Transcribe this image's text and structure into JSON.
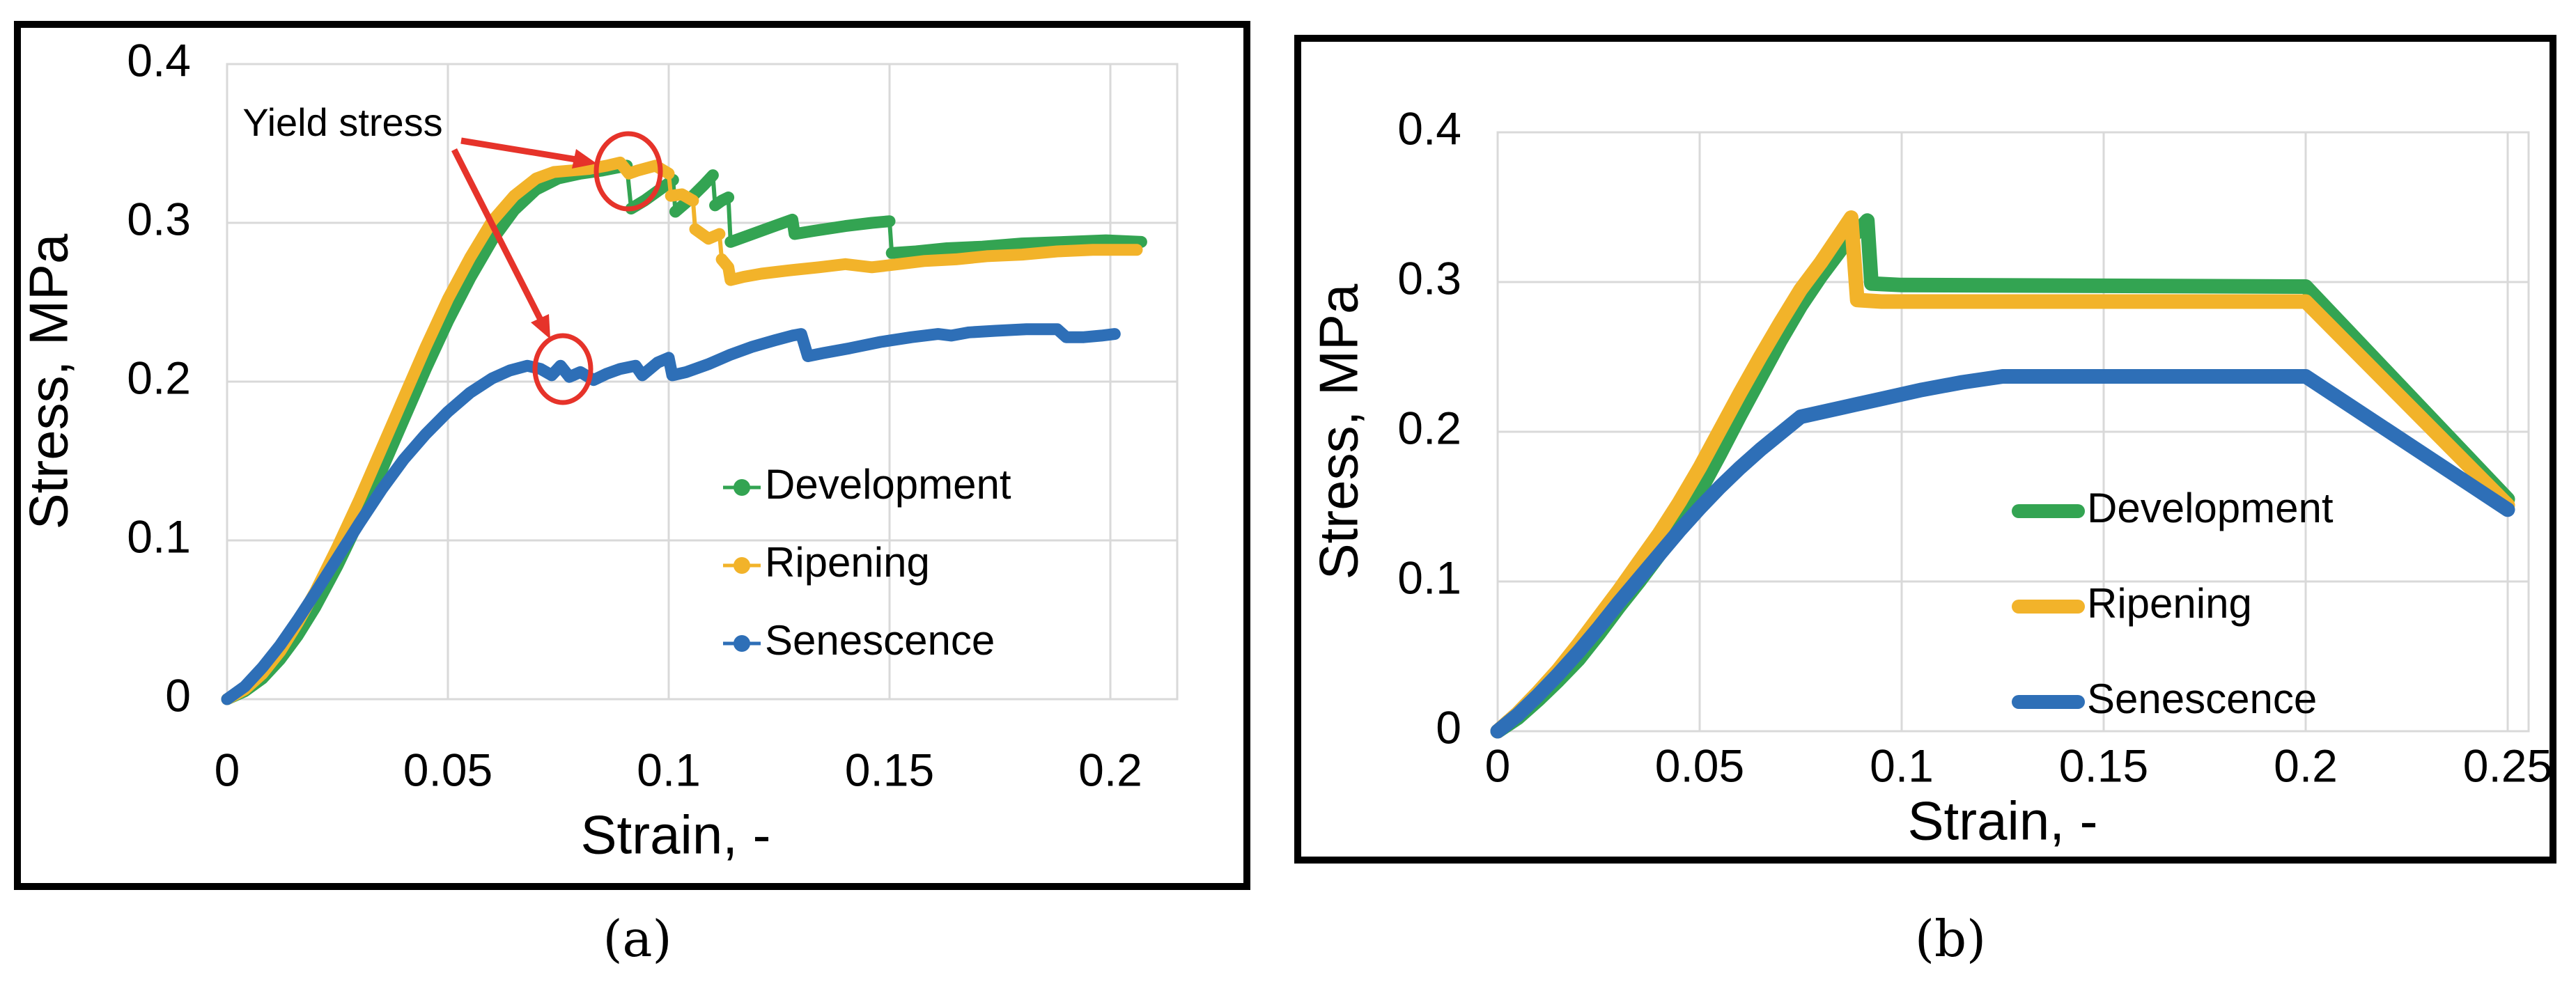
{
  "captions": {
    "a": "(a)",
    "b": "(b)"
  },
  "colors": {
    "development": "#33A452",
    "ripening": "#F2B32A",
    "senescence": "#2E6FB7",
    "annotation_red": "#E6332A",
    "grid": "#D9D9D9",
    "text": "#000000"
  },
  "chart_data": [
    {
      "id": "a",
      "type": "line",
      "caption": "(a)",
      "xlabel": "Strain, -",
      "ylabel": "Stress, MPa",
      "xlim": [
        0,
        0.215
      ],
      "ylim": [
        0,
        0.4
      ],
      "grid": true,
      "legend_position": "inside-lower-right",
      "x_ticks": [
        {
          "v": 0,
          "label": "0"
        },
        {
          "v": 0.05,
          "label": "0.05"
        },
        {
          "v": 0.1,
          "label": "0.1"
        },
        {
          "v": 0.15,
          "label": "0.15"
        },
        {
          "v": 0.2,
          "label": "0.2"
        }
      ],
      "y_ticks": [
        {
          "v": 0,
          "label": "0"
        },
        {
          "v": 0.1,
          "label": "0.1"
        },
        {
          "v": 0.2,
          "label": "0.2"
        },
        {
          "v": 0.3,
          "label": "0.3"
        },
        {
          "v": 0.4,
          "label": "0.4"
        }
      ],
      "annotation": {
        "text": "Yield stress",
        "targets": [
          {
            "label": "Development / Ripening yield",
            "strain": 0.089,
            "stress": 0.338
          },
          {
            "label": "Senescence yield",
            "strain": 0.0755,
            "stress": 0.21
          }
        ]
      },
      "series": [
        {
          "name": "Development",
          "color": "development",
          "style": "serrated",
          "points": [
            [
              0,
              0
            ],
            [
              0.004,
              0.005
            ],
            [
              0.008,
              0.013
            ],
            [
              0.012,
              0.025
            ],
            [
              0.016,
              0.04
            ],
            [
              0.02,
              0.058
            ],
            [
              0.025,
              0.084
            ],
            [
              0.03,
              0.113
            ],
            [
              0.035,
              0.144
            ],
            [
              0.04,
              0.176
            ],
            [
              0.045,
              0.208
            ],
            [
              0.05,
              0.238
            ],
            [
              0.055,
              0.265
            ],
            [
              0.06,
              0.289
            ],
            [
              0.065,
              0.308
            ],
            [
              0.07,
              0.321
            ],
            [
              0.075,
              0.328
            ],
            [
              0.08,
              0.331
            ],
            [
              0.085,
              0.333
            ],
            [
              0.0905,
              0.336
            ],
            [
              0.0915,
              0.309
            ],
            [
              0.0945,
              0.314
            ],
            [
              0.0985,
              0.322
            ],
            [
              0.101,
              0.327
            ],
            [
              0.1015,
              0.307
            ],
            [
              0.104,
              0.313
            ],
            [
              0.108,
              0.324
            ],
            [
              0.11,
              0.33
            ],
            [
              0.1105,
              0.311
            ],
            [
              0.112,
              0.314
            ],
            [
              0.1135,
              0.316
            ],
            [
              0.114,
              0.288
            ],
            [
              0.118,
              0.292
            ],
            [
              0.123,
              0.297
            ],
            [
              0.128,
              0.302
            ],
            [
              0.1285,
              0.293
            ],
            [
              0.133,
              0.295
            ],
            [
              0.14,
              0.298
            ],
            [
              0.146,
              0.3
            ],
            [
              0.15,
              0.301
            ],
            [
              0.1505,
              0.281
            ],
            [
              0.156,
              0.282
            ],
            [
              0.163,
              0.284
            ],
            [
              0.171,
              0.285
            ],
            [
              0.18,
              0.287
            ],
            [
              0.19,
              0.288
            ],
            [
              0.199,
              0.289
            ],
            [
              0.207,
              0.288
            ]
          ]
        },
        {
          "name": "Ripening",
          "color": "ripening",
          "style": "serrated",
          "points": [
            [
              0,
              0
            ],
            [
              0.004,
              0.006
            ],
            [
              0.008,
              0.016
            ],
            [
              0.012,
              0.03
            ],
            [
              0.016,
              0.048
            ],
            [
              0.02,
              0.068
            ],
            [
              0.025,
              0.096
            ],
            [
              0.03,
              0.126
            ],
            [
              0.035,
              0.158
            ],
            [
              0.04,
              0.19
            ],
            [
              0.045,
              0.222
            ],
            [
              0.05,
              0.252
            ],
            [
              0.055,
              0.278
            ],
            [
              0.06,
              0.301
            ],
            [
              0.065,
              0.317
            ],
            [
              0.07,
              0.328
            ],
            [
              0.074,
              0.332
            ],
            [
              0.078,
              0.333
            ],
            [
              0.082,
              0.334
            ],
            [
              0.086,
              0.336
            ],
            [
              0.089,
              0.338
            ],
            [
              0.091,
              0.331
            ],
            [
              0.093,
              0.333
            ],
            [
              0.097,
              0.336
            ],
            [
              0.1,
              0.331
            ],
            [
              0.1005,
              0.317
            ],
            [
              0.103,
              0.318
            ],
            [
              0.1055,
              0.314
            ],
            [
              0.106,
              0.296
            ],
            [
              0.109,
              0.29
            ],
            [
              0.1115,
              0.293
            ],
            [
              0.112,
              0.277
            ],
            [
              0.1135,
              0.272
            ],
            [
              0.114,
              0.264
            ],
            [
              0.117,
              0.266
            ],
            [
              0.121,
              0.268
            ],
            [
              0.127,
              0.27
            ],
            [
              0.134,
              0.272
            ],
            [
              0.14,
              0.274
            ],
            [
              0.146,
              0.272
            ],
            [
              0.152,
              0.274
            ],
            [
              0.158,
              0.276
            ],
            [
              0.165,
              0.277
            ],
            [
              0.172,
              0.279
            ],
            [
              0.18,
              0.28
            ],
            [
              0.188,
              0.282
            ],
            [
              0.196,
              0.283
            ],
            [
              0.206,
              0.283
            ]
          ]
        },
        {
          "name": "Senescence",
          "color": "senescence",
          "style": "serrated",
          "points": [
            [
              0,
              0
            ],
            [
              0.004,
              0.008
            ],
            [
              0.008,
              0.02
            ],
            [
              0.012,
              0.034
            ],
            [
              0.016,
              0.05
            ],
            [
              0.02,
              0.067
            ],
            [
              0.025,
              0.089
            ],
            [
              0.03,
              0.111
            ],
            [
              0.035,
              0.132
            ],
            [
              0.04,
              0.151
            ],
            [
              0.045,
              0.167
            ],
            [
              0.05,
              0.181
            ],
            [
              0.055,
              0.193
            ],
            [
              0.06,
              0.202
            ],
            [
              0.064,
              0.207
            ],
            [
              0.068,
              0.21
            ],
            [
              0.071,
              0.208
            ],
            [
              0.0735,
              0.204
            ],
            [
              0.0755,
              0.21
            ],
            [
              0.0775,
              0.203
            ],
            [
              0.08,
              0.206
            ],
            [
              0.083,
              0.201
            ],
            [
              0.086,
              0.205
            ],
            [
              0.089,
              0.208
            ],
            [
              0.0925,
              0.21
            ],
            [
              0.094,
              0.204
            ],
            [
              0.0975,
              0.212
            ],
            [
              0.1,
              0.215
            ],
            [
              0.1008,
              0.204
            ],
            [
              0.104,
              0.206
            ],
            [
              0.109,
              0.211
            ],
            [
              0.114,
              0.217
            ],
            [
              0.119,
              0.222
            ],
            [
              0.124,
              0.226
            ],
            [
              0.128,
              0.229
            ],
            [
              0.13,
              0.23
            ],
            [
              0.1315,
              0.216
            ],
            [
              0.135,
              0.218
            ],
            [
              0.141,
              0.221
            ],
            [
              0.148,
              0.225
            ],
            [
              0.155,
              0.228
            ],
            [
              0.161,
              0.23
            ],
            [
              0.164,
              0.229
            ],
            [
              0.168,
              0.231
            ],
            [
              0.174,
              0.232
            ],
            [
              0.181,
              0.233
            ],
            [
              0.188,
              0.233
            ],
            [
              0.19,
              0.228
            ],
            [
              0.194,
              0.228
            ],
            [
              0.198,
              0.229
            ],
            [
              0.201,
              0.23
            ]
          ]
        }
      ]
    },
    {
      "id": "b",
      "type": "line",
      "caption": "(b)",
      "xlabel": "Strain, -",
      "ylabel": "Stress, MPa",
      "xlim": [
        0,
        0.2585
      ],
      "ylim": [
        0,
        0.4
      ],
      "grid": true,
      "legend_position": "inside-lower-right",
      "x_ticks": [
        {
          "v": 0,
          "label": "0"
        },
        {
          "v": 0.05,
          "label": "0.05"
        },
        {
          "v": 0.1,
          "label": "0.1"
        },
        {
          "v": 0.15,
          "label": "0.15"
        },
        {
          "v": 0.2,
          "label": "0.2"
        },
        {
          "v": 0.25,
          "label": "0.25"
        }
      ],
      "y_ticks": [
        {
          "v": 0,
          "label": "0"
        },
        {
          "v": 0.1,
          "label": "0.1"
        },
        {
          "v": 0.2,
          "label": "0.2"
        },
        {
          "v": 0.3,
          "label": "0.3"
        },
        {
          "v": 0.4,
          "label": "0.4"
        }
      ],
      "series": [
        {
          "name": "Development",
          "color": "development",
          "style": "smooth",
          "points": [
            [
              0,
              0
            ],
            [
              0.005,
              0.009
            ],
            [
              0.01,
              0.021
            ],
            [
              0.015,
              0.034
            ],
            [
              0.02,
              0.048
            ],
            [
              0.025,
              0.065
            ],
            [
              0.03,
              0.083
            ],
            [
              0.035,
              0.1
            ],
            [
              0.04,
              0.118
            ],
            [
              0.045,
              0.139
            ],
            [
              0.05,
              0.16
            ],
            [
              0.055,
              0.185
            ],
            [
              0.06,
              0.211
            ],
            [
              0.065,
              0.236
            ],
            [
              0.07,
              0.261
            ],
            [
              0.075,
              0.284
            ],
            [
              0.08,
              0.304
            ],
            [
              0.085,
              0.322
            ],
            [
              0.0915,
              0.341
            ],
            [
              0.0925,
              0.299
            ],
            [
              0.1,
              0.298
            ],
            [
              0.2,
              0.297
            ],
            [
              0.25,
              0.155
            ]
          ]
        },
        {
          "name": "Ripening",
          "color": "ripening",
          "style": "smooth",
          "points": [
            [
              0,
              0
            ],
            [
              0.005,
              0.012
            ],
            [
              0.01,
              0.026
            ],
            [
              0.015,
              0.041
            ],
            [
              0.02,
              0.058
            ],
            [
              0.025,
              0.076
            ],
            [
              0.03,
              0.094
            ],
            [
              0.035,
              0.113
            ],
            [
              0.04,
              0.132
            ],
            [
              0.045,
              0.153
            ],
            [
              0.05,
              0.176
            ],
            [
              0.055,
              0.201
            ],
            [
              0.06,
              0.226
            ],
            [
              0.065,
              0.25
            ],
            [
              0.07,
              0.273
            ],
            [
              0.075,
              0.295
            ],
            [
              0.08,
              0.313
            ],
            [
              0.0875,
              0.343
            ],
            [
              0.089,
              0.288
            ],
            [
              0.095,
              0.287
            ],
            [
              0.2,
              0.287
            ],
            [
              0.25,
              0.151
            ]
          ]
        },
        {
          "name": "Senescence",
          "color": "senescence",
          "style": "smooth",
          "points": [
            [
              0,
              0
            ],
            [
              0.005,
              0.011
            ],
            [
              0.01,
              0.024
            ],
            [
              0.015,
              0.038
            ],
            [
              0.02,
              0.053
            ],
            [
              0.025,
              0.069
            ],
            [
              0.03,
              0.086
            ],
            [
              0.035,
              0.102
            ],
            [
              0.04,
              0.118
            ],
            [
              0.045,
              0.134
            ],
            [
              0.05,
              0.149
            ],
            [
              0.055,
              0.163
            ],
            [
              0.06,
              0.176
            ],
            [
              0.065,
              0.188
            ],
            [
              0.07,
              0.199
            ],
            [
              0.075,
              0.21
            ],
            [
              0.085,
              0.216
            ],
            [
              0.095,
              0.222
            ],
            [
              0.105,
              0.228
            ],
            [
              0.115,
              0.233
            ],
            [
              0.125,
              0.237
            ],
            [
              0.2,
              0.237
            ],
            [
              0.25,
              0.148
            ]
          ]
        }
      ]
    }
  ]
}
